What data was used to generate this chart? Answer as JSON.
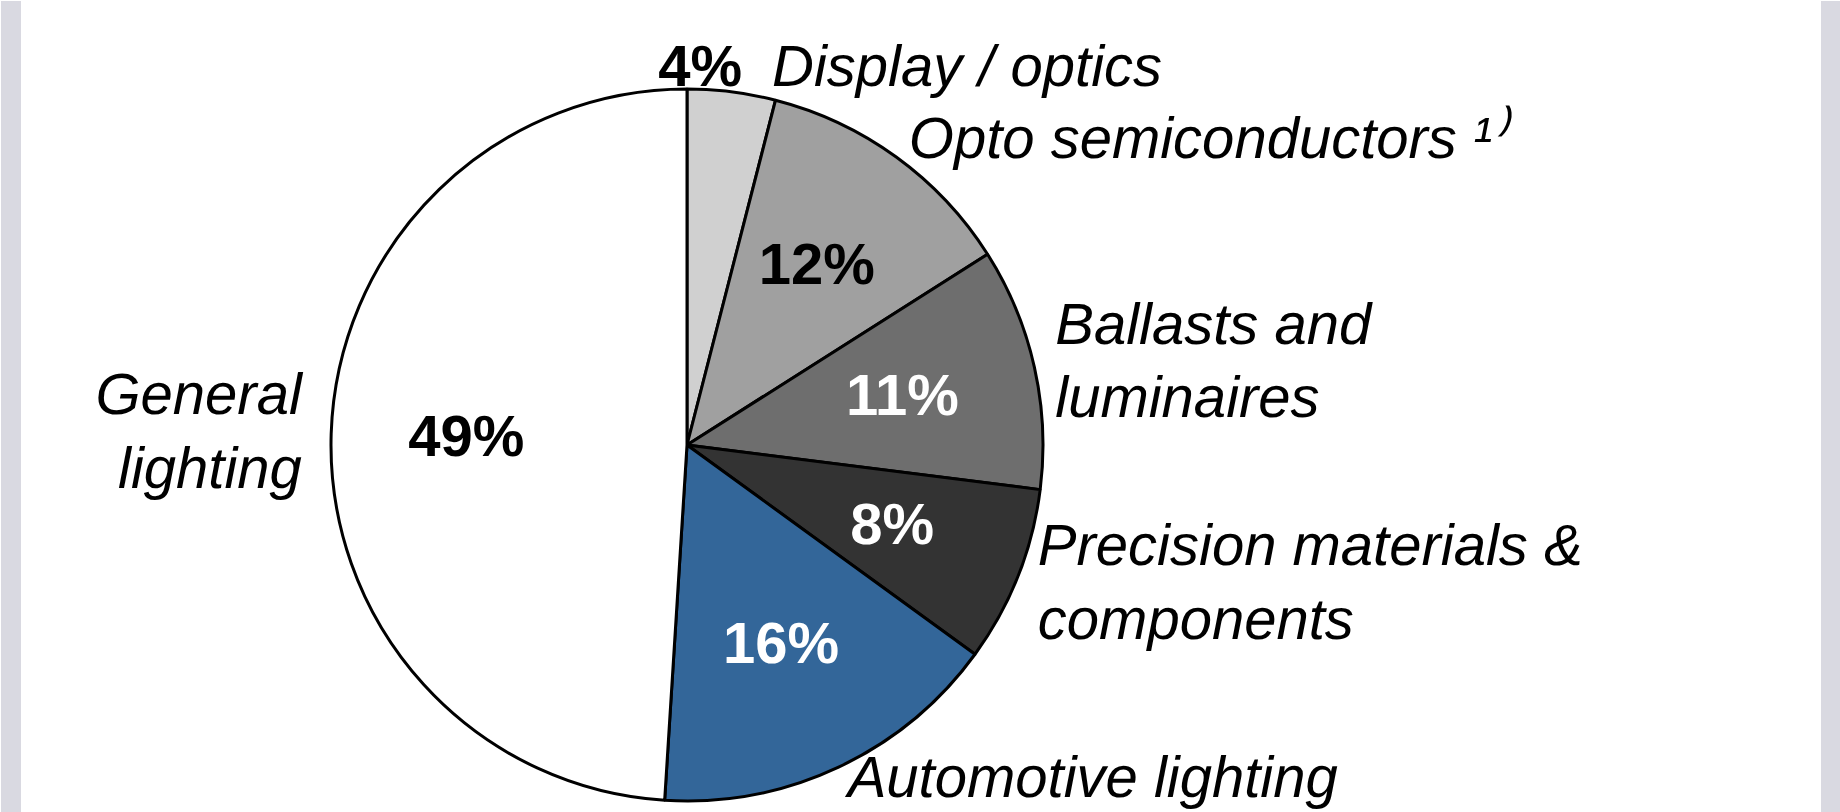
{
  "chart_data": {
    "type": "pie",
    "categories": [
      "Display / optics",
      "Opto semiconductors ¹⁾",
      "Ballasts and\nluminaires",
      "Precision materials &\ncomponents",
      "Automotive lighting",
      "General\nlighting"
    ],
    "values": [
      4,
      12,
      11,
      8,
      16,
      49
    ],
    "value_labels": [
      "4%",
      "12%",
      "11%",
      "8%",
      "16%",
      "49%"
    ],
    "colors": [
      "#d0d0d0",
      "#a0a0a0",
      "#6e6e6e",
      "#333333",
      "#336699",
      "#ffffff"
    ]
  }
}
